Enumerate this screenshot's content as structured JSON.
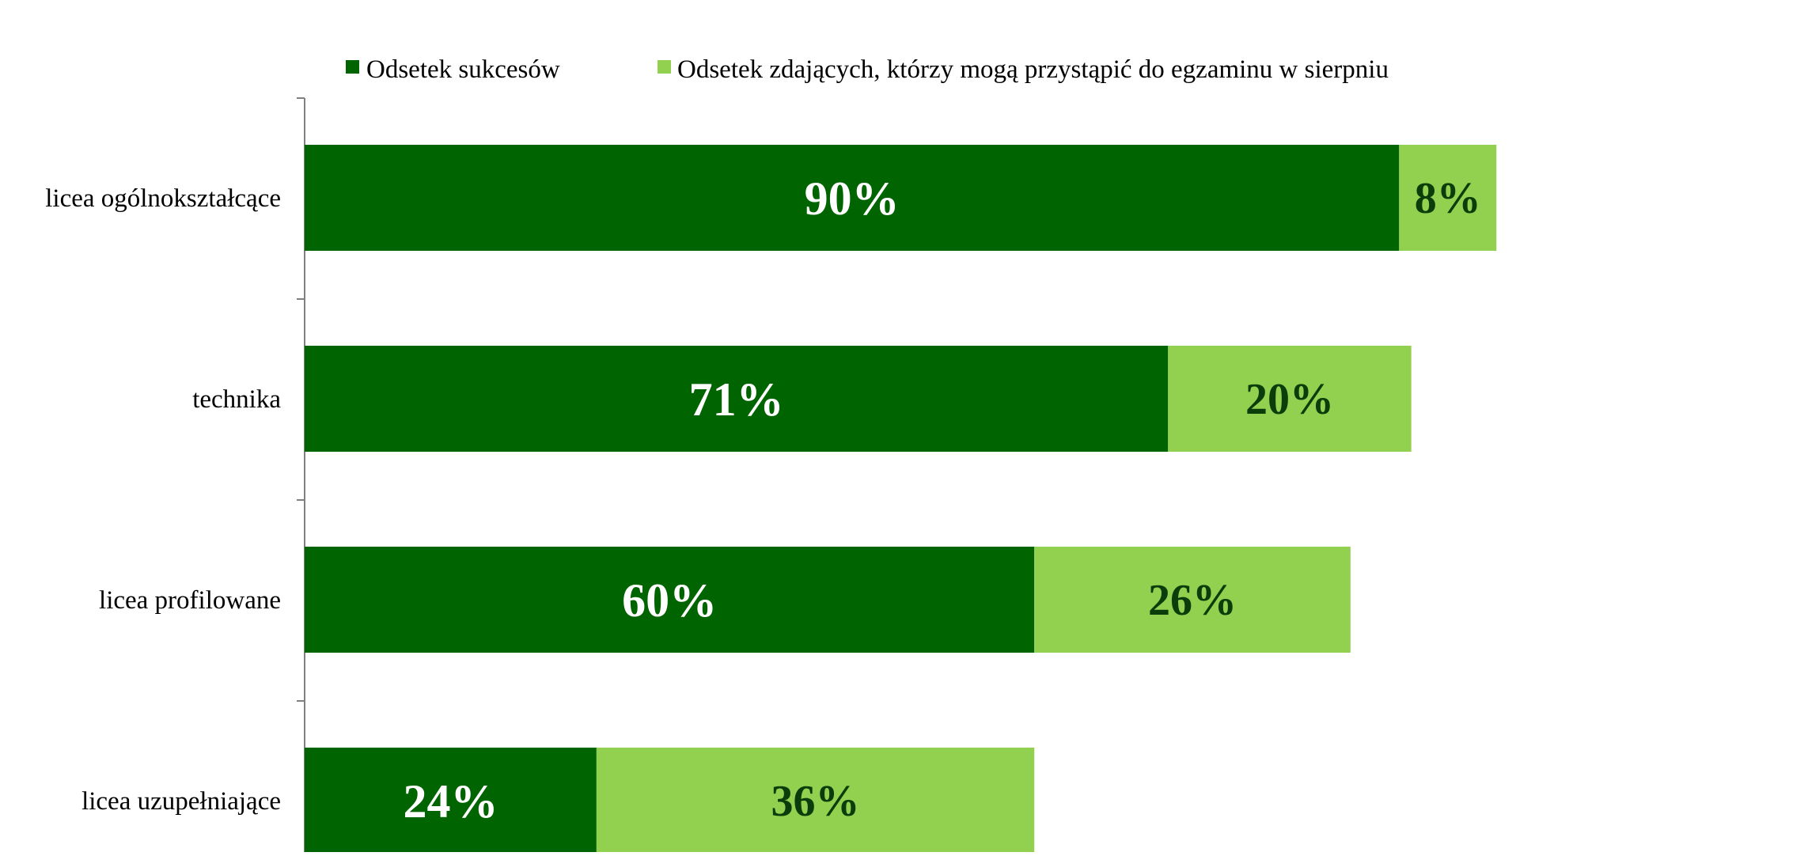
{
  "chart_data": {
    "type": "bar",
    "orientation": "horizontal",
    "stacked": true,
    "title": "",
    "xlabel": "",
    "ylabel": "",
    "xlim": [
      0,
      100
    ],
    "grid": false,
    "legend_position": "top",
    "categories": [
      "licea ogólnokształcące",
      "technika",
      "licea profilowane",
      "licea uzupełniające"
    ],
    "series": [
      {
        "name": "Odsetek sukcesów",
        "color": "#006400",
        "values": [
          90,
          71,
          60,
          24
        ],
        "labels": [
          "90%",
          "71%",
          "60%",
          "24%"
        ]
      },
      {
        "name": "Odsetek zdających, którzy mogą przystąpić do egzaminu w sierpniu",
        "color": "#92d050",
        "values": [
          8,
          20,
          26,
          36
        ],
        "labels": [
          "8%",
          "20%",
          "26%",
          "36%"
        ]
      }
    ]
  }
}
